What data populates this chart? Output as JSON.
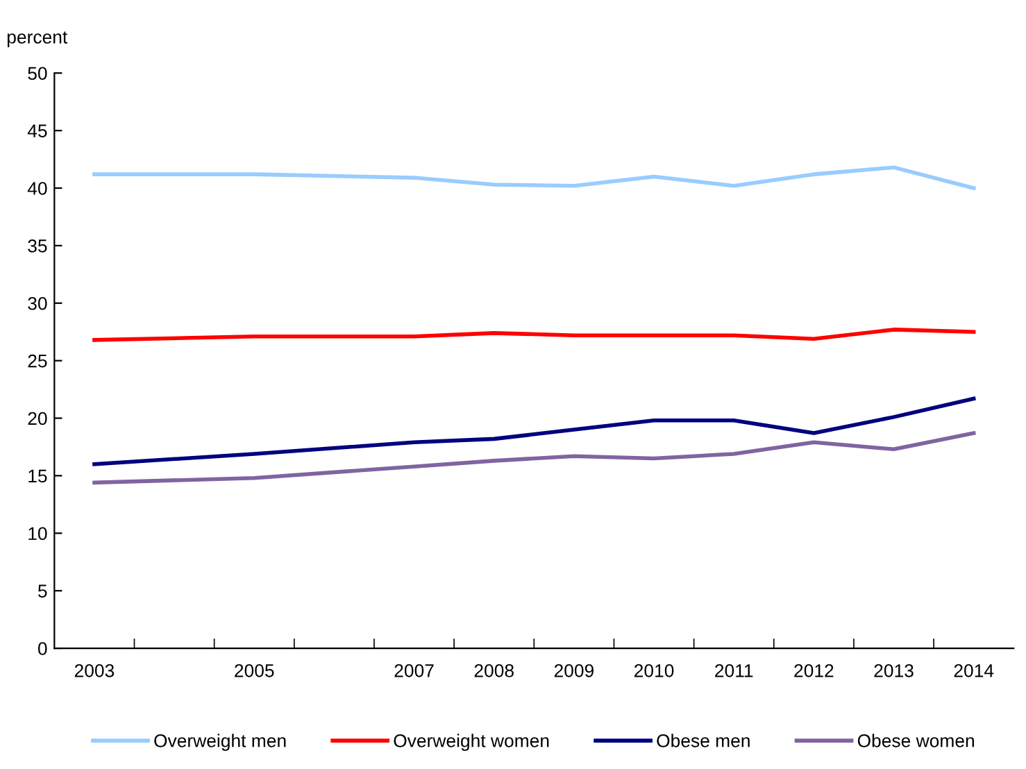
{
  "chart_data": {
    "type": "line",
    "ylabel": "percent",
    "x": [
      2003,
      2005,
      2007,
      2008,
      2009,
      2010,
      2011,
      2012,
      2013,
      2014
    ],
    "series": [
      {
        "name": "Overweight men",
        "color": "#99ccff",
        "values": [
          41.2,
          41.2,
          40.9,
          40.3,
          40.2,
          41.0,
          40.2,
          41.2,
          41.8,
          40.0
        ]
      },
      {
        "name": "Overweight women",
        "color": "#ff0000",
        "values": [
          26.8,
          27.1,
          27.1,
          27.4,
          27.2,
          27.2,
          27.2,
          26.9,
          27.7,
          27.5
        ]
      },
      {
        "name": "Obese men",
        "color": "#000080",
        "values": [
          16.0,
          16.9,
          17.9,
          18.2,
          19.0,
          19.8,
          19.8,
          18.7,
          20.1,
          21.7
        ]
      },
      {
        "name": "Obese women",
        "color": "#8064a2",
        "values": [
          14.4,
          14.8,
          15.8,
          16.3,
          16.7,
          16.5,
          16.9,
          17.9,
          17.3,
          18.7
        ]
      }
    ],
    "xlim": [
      2002.5,
      2014.5
    ],
    "xticks": [
      2003,
      2005,
      2007,
      2008,
      2009,
      2010,
      2011,
      2012,
      2013,
      2014,
      {
        "value": 2003.5,
        "label": null
      },
      {
        "value": 2004.5,
        "label": null
      },
      {
        "value": 2005.5,
        "label": null
      },
      {
        "value": 2006.5,
        "label": null
      },
      {
        "value": 2007.5,
        "label": null
      },
      {
        "value": 2008.5,
        "label": null
      },
      {
        "value": 2009.5,
        "label": null
      },
      {
        "value": 2010.5,
        "label": null
      },
      {
        "value": 2011.5,
        "label": null
      },
      {
        "value": 2012.5,
        "label": null
      },
      {
        "value": 2013.5,
        "label": null
      }
    ],
    "ylim": [
      0,
      50
    ],
    "yticks": [
      0,
      5,
      10,
      15,
      20,
      25,
      30,
      35,
      40,
      45,
      50
    ],
    "grid": false,
    "legend": "bottom",
    "marker": "none",
    "line_style": "solid"
  }
}
